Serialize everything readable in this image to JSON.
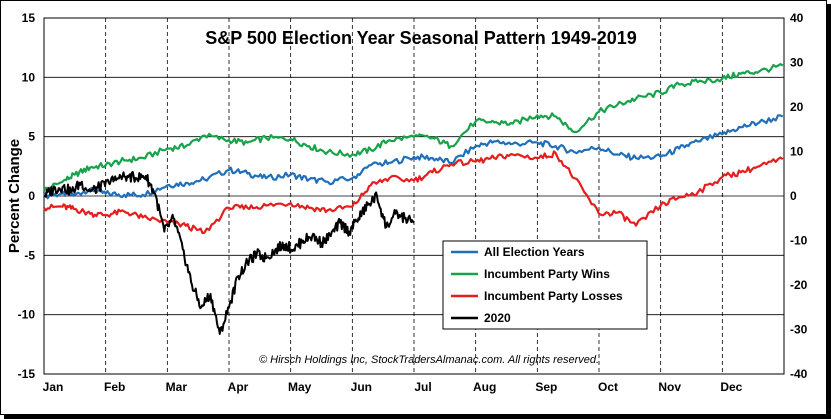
{
  "chart_data": {
    "type": "line",
    "title": "S&P 500 Election Year Seasonal Pattern 1949-2019",
    "ylabel": "Percent Change",
    "xlabel": "",
    "credit": "© Hirsch Holdings Inc, StockTradersAlmanac.com.  All rights reserved.",
    "ylim": [
      -15,
      15
    ],
    "y2lim": [
      -40,
      40
    ],
    "yticks": [
      "15",
      "10",
      "5",
      "0",
      "-5",
      "-10",
      "-15"
    ],
    "y2ticks": [
      "40",
      "30",
      "20",
      "10",
      "0",
      "-10",
      "-20",
      "-30",
      "-40"
    ],
    "months": [
      "Jan",
      "Feb",
      "Mar",
      "Apr",
      "May",
      "Jun",
      "Jul",
      "Aug",
      "Sep",
      "Oct",
      "Nov",
      "Dec"
    ],
    "grid": true,
    "legend_position": "bottom-center",
    "series": [
      {
        "name": "All Election Years",
        "axis": "left",
        "color": "#1f6fba",
        "x": [
          0,
          0.3,
          0.5,
          0.75,
          1.0,
          1.3,
          1.6,
          2.0,
          2.3,
          2.6,
          3.0,
          3.3,
          3.6,
          4.0,
          4.3,
          4.6,
          5.0,
          5.3,
          5.6,
          6.0,
          6.3,
          6.6,
          7.0,
          7.3,
          7.6,
          8.0,
          8.3,
          8.6,
          9.0,
          9.3,
          9.6,
          10.0,
          10.3,
          10.6,
          11.0,
          11.3,
          11.6,
          11.98
        ],
        "values": [
          0,
          0.2,
          0.1,
          0.6,
          0.2,
          0.1,
          0.1,
          0.9,
          1.1,
          1.4,
          2.2,
          1.9,
          1.5,
          1.8,
          1.4,
          1.2,
          1.5,
          2.6,
          2.8,
          3.3,
          3.2,
          2.8,
          4.2,
          4.6,
          4.4,
          4.5,
          4.2,
          3.7,
          4.1,
          3.5,
          3.2,
          3.3,
          4.0,
          4.6,
          5.2,
          5.8,
          6.2,
          6.7
        ]
      },
      {
        "name": "Incumbent Party Wins",
        "axis": "left",
        "color": "#16a34a",
        "x": [
          0,
          0.3,
          0.5,
          0.75,
          1.0,
          1.3,
          1.6,
          2.0,
          2.3,
          2.6,
          3.0,
          3.3,
          3.6,
          4.0,
          4.3,
          4.6,
          5.0,
          5.3,
          5.6,
          6.0,
          6.3,
          6.6,
          7.0,
          7.3,
          7.6,
          8.0,
          8.3,
          8.6,
          9.0,
          9.3,
          9.6,
          10.0,
          10.3,
          10.6,
          11.0,
          11.3,
          11.6,
          11.98
        ],
        "values": [
          0.5,
          1.2,
          1.8,
          2.4,
          2.6,
          3.0,
          3.2,
          4.0,
          4.2,
          5.1,
          4.7,
          4.5,
          4.9,
          4.8,
          4.2,
          3.7,
          3.5,
          3.9,
          4.7,
          5.0,
          4.9,
          4.2,
          6.3,
          6.2,
          6.1,
          6.8,
          6.7,
          5.4,
          7.1,
          7.7,
          8.2,
          8.7,
          9.4,
          9.6,
          9.9,
          10.3,
          10.5,
          11.0
        ]
      },
      {
        "name": "Incumbent Party Losses",
        "axis": "left",
        "color": "#e41e1e",
        "x": [
          0,
          0.3,
          0.5,
          0.75,
          1.0,
          1.3,
          1.6,
          2.0,
          2.3,
          2.6,
          3.0,
          3.3,
          3.6,
          4.0,
          4.3,
          4.6,
          5.0,
          5.3,
          5.6,
          6.0,
          6.3,
          6.6,
          7.0,
          7.3,
          7.6,
          8.0,
          8.3,
          8.6,
          9.0,
          9.3,
          9.6,
          10.0,
          10.3,
          10.6,
          11.0,
          11.3,
          11.6,
          11.98
        ],
        "values": [
          -1.0,
          -0.9,
          -1.1,
          -1.5,
          -1.6,
          -1.3,
          -1.8,
          -2.2,
          -2.5,
          -3.1,
          -1.0,
          -1.0,
          -0.8,
          -0.6,
          -1.0,
          -1.2,
          -0.9,
          0.9,
          1.5,
          1.3,
          2.0,
          2.7,
          2.9,
          3.2,
          3.5,
          3.2,
          3.6,
          1.5,
          -1.5,
          -1.4,
          -2.5,
          -0.8,
          -0.1,
          0.3,
          1.6,
          2.0,
          2.5,
          3.1
        ]
      },
      {
        "name": "2020",
        "axis": "right",
        "color": "#000000",
        "x": [
          0,
          0.15,
          0.3,
          0.45,
          0.6,
          0.75,
          0.9,
          1.05,
          1.2,
          1.35,
          1.5,
          1.65,
          1.8,
          1.95,
          2.1,
          2.25,
          2.4,
          2.55,
          2.7,
          2.85,
          3.0,
          3.15,
          3.3,
          3.45,
          3.6,
          3.75,
          3.9,
          4.05,
          4.2,
          4.35,
          4.5,
          4.65,
          4.8,
          4.95,
          5.1,
          5.25,
          5.4,
          5.55,
          5.7,
          5.85,
          6.0
        ],
        "values": [
          0.0,
          1.5,
          2.0,
          1.0,
          3.0,
          1.0,
          2.0,
          3.0,
          4.0,
          4.5,
          4.0,
          4.5,
          0.5,
          -8.0,
          -5.0,
          -12.0,
          -20.0,
          -25.0,
          -22.0,
          -31.0,
          -25.0,
          -18.0,
          -15.0,
          -13.0,
          -14.0,
          -12.0,
          -11.0,
          -12.0,
          -10.0,
          -9.0,
          -10.5,
          -9.0,
          -6.0,
          -8.0,
          -5.0,
          -2.0,
          0.0,
          -7.0,
          -4.0,
          -5.0,
          -6.0
        ]
      }
    ]
  }
}
